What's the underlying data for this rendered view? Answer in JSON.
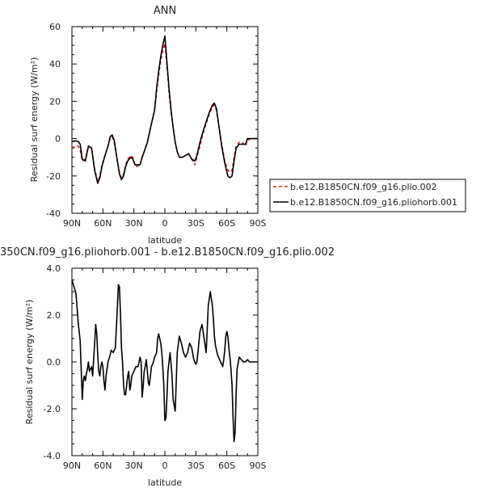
{
  "chart_data": [
    {
      "type": "line",
      "title": "ANN",
      "xlabel": "latitude",
      "ylabel": "Residual surf energy (W/m²)",
      "x_ticks": [
        "90N",
        "60N",
        "30N",
        "0",
        "30S",
        "60S",
        "90S"
      ],
      "y_ticks": [
        "-40",
        "-20",
        "0",
        "20",
        "40",
        "60"
      ],
      "xlim": [
        90,
        -90
      ],
      "ylim": [
        -40,
        60
      ],
      "grid": false,
      "legend_position": "right",
      "series": [
        {
          "name": "b.e12.B1850CN.f09_g16.plio.002",
          "color": "#d62020",
          "dash": "dashed",
          "x": [
            90,
            86,
            84,
            82,
            80,
            77,
            74,
            71,
            68,
            65,
            63,
            61,
            58,
            55,
            53,
            51,
            49,
            46,
            44,
            42,
            40,
            38,
            36,
            33,
            31,
            29,
            27,
            24,
            22,
            20,
            17,
            15,
            13,
            10,
            8,
            6,
            4,
            2,
            0,
            -2,
            -4,
            -6,
            -8,
            -10,
            -12,
            -14,
            -17,
            -20,
            -23,
            -26,
            -29,
            -31,
            -34,
            -37,
            -40,
            -43,
            -46,
            -48,
            -50,
            -52,
            -55,
            -58,
            -61,
            -63,
            -65,
            -67,
            -69,
            -72,
            -75,
            -78,
            -80,
            -83,
            -86,
            -90
          ],
          "y": [
            -5,
            -4,
            -4,
            -6,
            -12,
            -11,
            -4,
            -5,
            -16,
            -23,
            -20,
            -14,
            -9,
            -4,
            0,
            1,
            -2,
            -12,
            -18,
            -21,
            -19,
            -14,
            -11,
            -9,
            -10,
            -14,
            -15,
            -14,
            -10,
            -7,
            -2,
            3,
            8,
            15,
            25,
            34,
            42,
            47,
            51,
            39,
            25,
            14,
            6,
            -2,
            -7,
            -10,
            -10,
            -9,
            -8,
            -11,
            -14,
            -10,
            -4,
            3,
            8,
            13,
            17,
            18,
            15,
            8,
            -3,
            -12,
            -17,
            -18,
            -17,
            -10,
            -4,
            -2,
            -2,
            -4,
            -1,
            0,
            0,
            0
          ]
        },
        {
          "name": "b.e12.B1850CN.f09_g16.pliohorb.001",
          "color": "#000000",
          "dash": "solid",
          "x": [
            90,
            86,
            84,
            82,
            80,
            77,
            74,
            71,
            68,
            65,
            63,
            61,
            58,
            55,
            53,
            51,
            49,
            46,
            44,
            42,
            40,
            38,
            36,
            33,
            31,
            29,
            27,
            24,
            22,
            20,
            17,
            15,
            13,
            10,
            8,
            6,
            4,
            2,
            0,
            -2,
            -4,
            -6,
            -8,
            -10,
            -12,
            -14,
            -17,
            -20,
            -23,
            -26,
            -29,
            -31,
            -34,
            -37,
            -40,
            -43,
            -46,
            -48,
            -50,
            -52,
            -55,
            -58,
            -61,
            -63,
            -65,
            -67,
            -69,
            -72,
            -75,
            -78,
            -80,
            -83,
            -86,
            -90
          ],
          "y": [
            -1.5,
            -1.2,
            -1.5,
            -3,
            -11,
            -12,
            -4,
            -5,
            -17,
            -24,
            -21,
            -15,
            -9,
            -4,
            1,
            2,
            -1,
            -12,
            -19,
            -22,
            -20,
            -15,
            -12,
            -10,
            -11,
            -14,
            -14,
            -14,
            -10,
            -7,
            -2,
            3,
            8,
            15,
            27,
            36,
            44,
            50,
            55,
            41,
            27,
            15,
            6,
            -2,
            -7,
            -10,
            -10,
            -9,
            -8,
            -11,
            -12,
            -9,
            -2,
            4,
            9,
            14,
            18,
            19,
            16,
            8,
            -4,
            -13,
            -20,
            -21,
            -20,
            -12,
            -5,
            -3,
            -3,
            -3,
            0,
            0,
            0,
            0
          ]
        }
      ]
    },
    {
      "type": "line",
      "title": "350CN.f09_g16.pliohorb.001 - b.e12.B1850CN.f09_g16.plio.002",
      "xlabel": "latitude",
      "ylabel": "Residual surf energy (W/m²)",
      "x_ticks": [
        "90N",
        "60N",
        "30N",
        "0",
        "30S",
        "60S",
        "90S"
      ],
      "y_ticks": [
        "-4.0",
        "-2.0",
        "0.0",
        "2.0",
        "4.0"
      ],
      "xlim": [
        90,
        -90
      ],
      "ylim": [
        -4,
        4
      ],
      "grid": false,
      "series": [
        {
          "color": "#000000",
          "dash": "solid",
          "x": [
            90,
            88,
            86,
            84,
            82,
            80,
            79,
            78,
            77,
            76,
            75,
            74,
            73,
            71,
            70,
            68,
            67,
            66,
            65,
            64,
            63,
            62,
            61,
            60,
            59,
            58,
            57,
            55,
            53,
            52,
            50,
            48,
            46,
            45,
            44,
            43,
            42,
            41,
            40,
            39,
            38,
            37,
            36,
            35,
            34,
            33,
            32,
            30,
            28,
            26,
            25,
            24,
            23,
            22,
            21,
            20,
            19,
            18,
            17,
            16,
            15,
            14,
            13,
            12,
            11,
            10,
            9,
            8,
            7,
            6,
            5,
            4,
            3,
            2,
            1,
            0,
            -1,
            -2,
            -3,
            -4,
            -5,
            -6,
            -7,
            -8,
            -10,
            -12,
            -14,
            -16,
            -18,
            -20,
            -22,
            -24,
            -26,
            -28,
            -30,
            -31,
            -32,
            -34,
            -36,
            -38,
            -40,
            -42,
            -44,
            -46,
            -47,
            -48,
            -49,
            -50,
            -51,
            -52,
            -53,
            -55,
            -56,
            -57,
            -58,
            -59,
            -60,
            -61,
            -62,
            -63,
            -64,
            -65,
            -66,
            -67,
            -68,
            -69,
            -70,
            -72,
            -74,
            -76,
            -78,
            -80,
            -82,
            -85,
            -90
          ],
          "y": [
            3.5,
            3.2,
            2.9,
            1.7,
            0.9,
            -1.6,
            -0.8,
            -0.6,
            -0.8,
            -0.5,
            -0.3,
            0.0,
            -0.4,
            -0.2,
            -0.6,
            0.8,
            1.6,
            1.2,
            0.3,
            -0.4,
            -0.6,
            -0.2,
            0.0,
            -0.2,
            -0.8,
            -1.2,
            -0.6,
            0.0,
            0.3,
            0.5,
            0.4,
            0.6,
            2.3,
            3.3,
            3.2,
            2.0,
            0.6,
            0.0,
            -1.0,
            -1.4,
            -1.4,
            -1.0,
            -0.6,
            -0.4,
            -1.2,
            -1.0,
            -0.6,
            -0.4,
            -0.2,
            -0.2,
            0.0,
            0.2,
            0.0,
            -1.5,
            -1.0,
            -0.4,
            -0.2,
            0.1,
            -0.4,
            -0.9,
            -1.0,
            -0.6,
            -0.2,
            -0.1,
            0.0,
            0.2,
            0.3,
            0.4,
            1.0,
            1.2,
            1.0,
            0.8,
            0.4,
            -0.2,
            -1.0,
            -2.5,
            -2.4,
            -1.5,
            -0.4,
            0.0,
            0.4,
            -0.1,
            -0.6,
            -1.6,
            -2.1,
            0.4,
            1.1,
            0.8,
            0.4,
            0.2,
            0.4,
            0.8,
            0.6,
            0.1,
            -0.1,
            0.0,
            0.4,
            1.3,
            1.6,
            1.0,
            0.4,
            2.4,
            3.0,
            2.4,
            1.8,
            1.1,
            0.7,
            0.5,
            0.3,
            0.2,
            0.1,
            -0.1,
            -0.2,
            0.1,
            0.5,
            1.1,
            1.3,
            1.1,
            0.6,
            0.2,
            -0.3,
            -1.0,
            -2.3,
            -3.4,
            -3.0,
            -1.3,
            -0.3,
            0.2,
            0.1,
            0.0,
            0.0,
            0.1,
            0.0,
            0.0,
            0.0
          ]
        }
      ]
    }
  ]
}
